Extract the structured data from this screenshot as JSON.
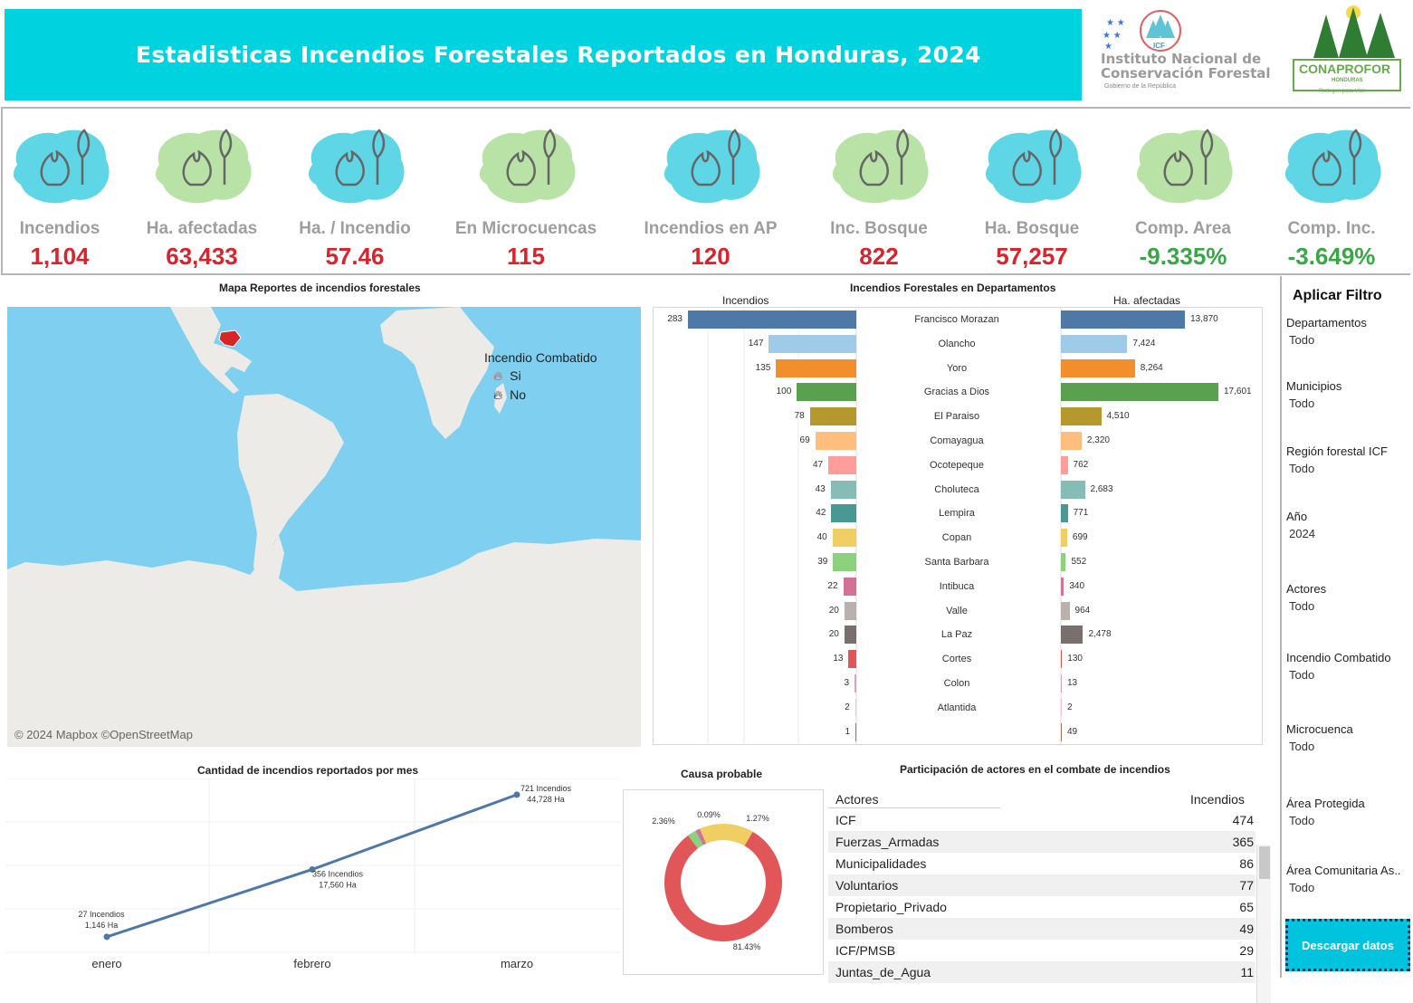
{
  "header": {
    "title": "Estadisticas Incendios Forestales Reportados en Honduras, 2024"
  },
  "logos": {
    "icf": {
      "line1": "Instituto Nacional de",
      "line2": "Conservación Forestal",
      "sub": "Gobierno de la República",
      "badge": "ICF"
    },
    "conaprofor": {
      "name": "CONAPROFOR",
      "country": "HONDURAS",
      "tagline": "Protegen para Vivir"
    }
  },
  "kpis": [
    {
      "label": "Incendios",
      "value": "1,104",
      "icon": "fire-grass-tree-icon",
      "color": "#5fd6e6"
    },
    {
      "label": "Ha. afectadas",
      "value": "63,433",
      "icon": "map-fire-icon",
      "color": "#b9e3a6"
    },
    {
      "label": "Ha. / Incendio",
      "value": "57.46",
      "icon": "burning-tree-icon",
      "color": "#5fd6e6"
    },
    {
      "label": "En Microcuencas",
      "value": "115",
      "icon": "water-drop-icon",
      "color": "#b9e3a6"
    },
    {
      "label": "Incendios en AP",
      "value": "120",
      "icon": "protected-area-icon",
      "color": "#5fd6e6"
    },
    {
      "label": "Inc. Bosque",
      "value": "822",
      "icon": "forest-fire-icon",
      "color": "#b9e3a6"
    },
    {
      "label": "Ha. Bosque",
      "value": "57,257",
      "icon": "forest-hectares-icon",
      "color": "#5fd6e6"
    },
    {
      "label": "Comp. Area",
      "value": "-9.335%",
      "icon": "compare-area-icon",
      "color": "#b9e3a6"
    },
    {
      "label": "Comp. Inc.",
      "value": "-3.649%",
      "icon": "compare-incidents-icon",
      "color": "#5fd6e6"
    }
  ],
  "map": {
    "title": "Mapa Reportes de incendios forestales",
    "attribution": "© 2024 Mapbox ©OpenStreetMap",
    "legend_title": "Incendio Combatido",
    "legend_items": [
      "Si",
      "No"
    ]
  },
  "departments": {
    "title": "Incendios Forestales en Departamentos",
    "left_header": "Incendios",
    "right_header": "Ha. afectadas",
    "left_max": 283,
    "right_max": 17601
  },
  "chart_data": [
    {
      "type": "bar",
      "title": "Incendios Forestales en Departamentos",
      "categories": [
        "Francisco Morazan",
        "Olancho",
        "Yoro",
        "Gracias a Dios",
        "El Paraiso",
        "Comayagua",
        "Ocotepeque",
        "Choluteca",
        "Lempira",
        "Copan",
        "Santa Barbara",
        "Intibuca",
        "Valle",
        "La Paz",
        "Cortes",
        "Colon",
        "Atlantida",
        ""
      ],
      "series": [
        {
          "name": "Incendios",
          "values": [
            283,
            147,
            135,
            100,
            78,
            69,
            47,
            43,
            42,
            40,
            39,
            22,
            20,
            20,
            13,
            3,
            2,
            1
          ],
          "labels": [
            "283",
            "147",
            "135",
            "100",
            "78",
            "69",
            "47",
            "43",
            "42",
            "40",
            "39",
            "22",
            "20",
            "20",
            "13",
            "3",
            "2",
            "1"
          ]
        },
        {
          "name": "Ha. afectadas",
          "values": [
            13870,
            7424,
            8264,
            17601,
            4510,
            2320,
            762,
            2683,
            771,
            699,
            552,
            340,
            964,
            2478,
            130,
            13,
            2,
            49
          ],
          "labels": [
            "13,870",
            "7,424",
            "8,264",
            "17,601",
            "4,510",
            "2,320",
            "762",
            "2,683",
            "771",
            "699",
            "552",
            "340",
            "964",
            "2,478",
            "130",
            "13",
            "2",
            "49"
          ]
        }
      ],
      "colors": [
        "#4e79a7",
        "#a0cbe8",
        "#f28e2b",
        "#59a14f",
        "#b6992d",
        "#ffbe7d",
        "#ff9d9a",
        "#86bcb6",
        "#499894",
        "#f1ce63",
        "#8cd17d",
        "#d37295",
        "#bab0ac",
        "#79706e",
        "#e15759",
        "#d4a6c8",
        "#fabfd2",
        "#9d7660"
      ]
    },
    {
      "type": "line",
      "title": "Cantidad de incendios reportados por mes",
      "categories": [
        "enero",
        "febrero",
        "marzo"
      ],
      "series": [
        {
          "name": "Incendios",
          "values": [
            27,
            356,
            721
          ]
        }
      ],
      "point_labels": [
        [
          "27 Incendios",
          "1,146 Ha"
        ],
        [
          "356 Incendios",
          "17,560 Ha"
        ],
        [
          "721 Incendios",
          "44,728 Ha"
        ]
      ],
      "ylim": [
        0,
        800
      ]
    },
    {
      "type": "pie",
      "title": "Causa probable",
      "values": [
        81.43,
        2.36,
        0.09,
        1.27,
        14.85
      ],
      "labels": [
        "81.43%",
        "2.36%",
        "0.09%",
        "1.27%",
        ""
      ],
      "colors": [
        "#e15759",
        "#8cd17d",
        "#4e79a7",
        "#d37295",
        "#f1ce63"
      ]
    }
  ],
  "month": {
    "title": "Cantidad de incendios reportados por mes"
  },
  "cause": {
    "title": "Causa probable"
  },
  "actors": {
    "title": "Participación de actores en el combate de incendios",
    "col_actor": "Actores",
    "col_count": "Incendios",
    "rows": [
      {
        "name": "ICF",
        "count": "474"
      },
      {
        "name": "Fuerzas_Armadas",
        "count": "365"
      },
      {
        "name": "Municipalidades",
        "count": "86"
      },
      {
        "name": "Voluntarios",
        "count": "77"
      },
      {
        "name": "Propietario_Privado",
        "count": "65"
      },
      {
        "name": "Bomberos",
        "count": "49"
      },
      {
        "name": "ICF/PMSB",
        "count": "29"
      },
      {
        "name": "Juntas_de_Agua",
        "count": "11"
      }
    ]
  },
  "filters": {
    "title": "Aplicar Filtro",
    "items": [
      {
        "label": "Departamentos",
        "value": "Todo"
      },
      {
        "label": "Municipios",
        "value": "Todo"
      },
      {
        "label": "Región forestal ICF",
        "value": "Todo"
      },
      {
        "label": "Año",
        "value": "2024"
      },
      {
        "label": "Actores",
        "value": "Todo"
      },
      {
        "label": "Incendio Combatido",
        "value": "Todo"
      },
      {
        "label": "Microcuenca",
        "value": "Todo"
      },
      {
        "label": "Área Protegida",
        "value": "Todo"
      },
      {
        "label": "Área Comunitaria As..",
        "value": "Todo"
      }
    ],
    "download_label": "Descargar datos"
  }
}
